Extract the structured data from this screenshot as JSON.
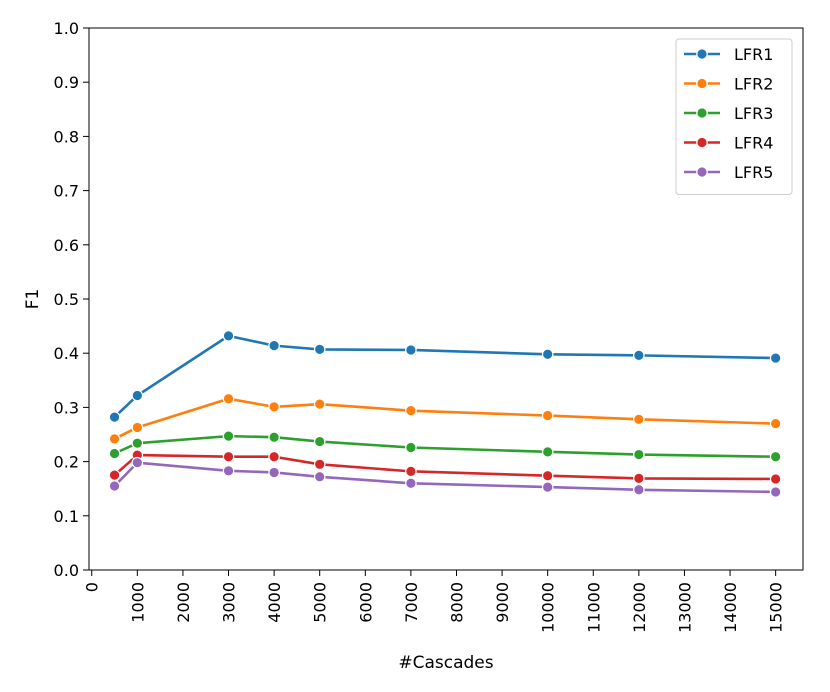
{
  "chart_data": {
    "type": "line",
    "title": "",
    "xlabel": "#Cascades",
    "ylabel": "F1",
    "xlim": [
      -60,
      15600
    ],
    "ylim": [
      0.0,
      1.0
    ],
    "x_ticks": [
      0,
      1000,
      2000,
      3000,
      4000,
      5000,
      6000,
      7000,
      8000,
      9000,
      10000,
      11000,
      12000,
      13000,
      14000,
      15000
    ],
    "y_ticks": [
      "0.0",
      "0.1",
      "0.2",
      "0.3",
      "0.4",
      "0.5",
      "0.6",
      "0.7",
      "0.8",
      "0.9",
      "1.0"
    ],
    "grid": false,
    "legend_position": "top-right",
    "x": [
      500,
      1000,
      3000,
      4000,
      5000,
      7000,
      10000,
      12000,
      15000
    ],
    "series": [
      {
        "name": "LFR1",
        "color": "#1f77b4",
        "values": [
          0.282,
          0.322,
          0.432,
          0.414,
          0.407,
          0.406,
          0.398,
          0.396,
          0.391
        ]
      },
      {
        "name": "LFR2",
        "color": "#ff7f0e",
        "values": [
          0.242,
          0.263,
          0.316,
          0.301,
          0.306,
          0.294,
          0.285,
          0.278,
          0.27
        ]
      },
      {
        "name": "LFR3",
        "color": "#2ca02c",
        "values": [
          0.215,
          0.234,
          0.247,
          0.245,
          0.237,
          0.226,
          0.218,
          0.213,
          0.209
        ]
      },
      {
        "name": "LFR4",
        "color": "#d62728",
        "values": [
          0.175,
          0.212,
          0.209,
          0.209,
          0.195,
          0.182,
          0.174,
          0.169,
          0.168
        ]
      },
      {
        "name": "LFR5",
        "color": "#9467bd",
        "values": [
          0.155,
          0.198,
          0.183,
          0.18,
          0.172,
          0.16,
          0.153,
          0.148,
          0.144
        ]
      }
    ]
  }
}
